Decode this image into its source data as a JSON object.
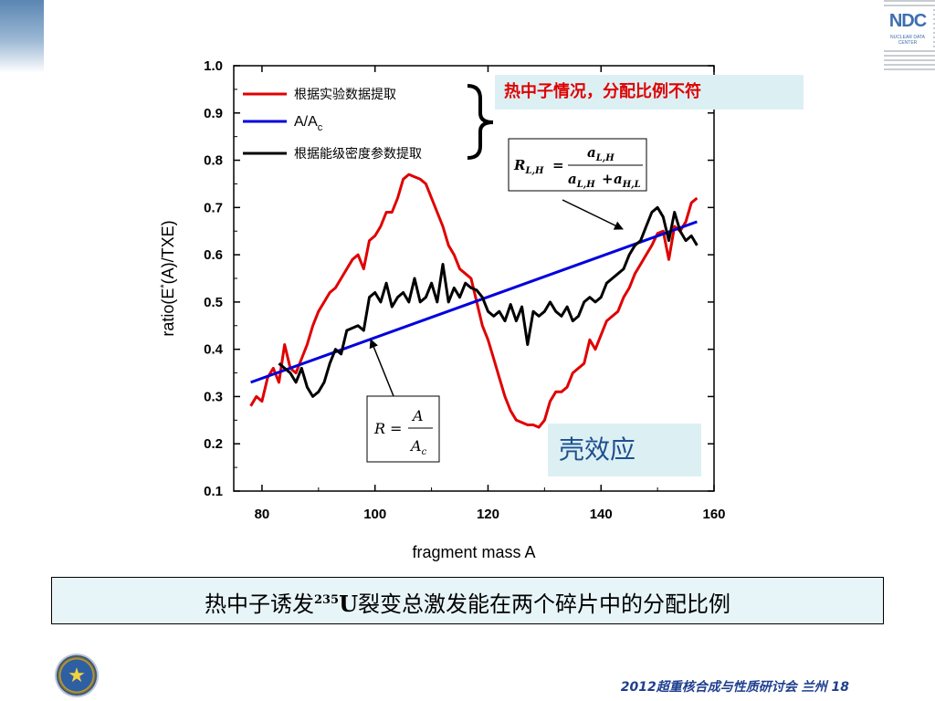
{
  "chart_data": {
    "type": "line",
    "xlabel": "fragment mass A",
    "ylabel_parts": [
      "ratio(E",
      "*",
      "(A)/TXE)"
    ],
    "xlim": [
      75,
      160
    ],
    "ylim": [
      0.1,
      1.0
    ],
    "x_ticks": [
      "80",
      "100",
      "120",
      "140",
      "160"
    ],
    "x_tick_values": [
      80,
      100,
      120,
      140,
      160
    ],
    "y_ticks": [
      "0.1",
      "0.2",
      "0.3",
      "0.4",
      "0.5",
      "0.6",
      "0.7",
      "0.8",
      "0.9",
      "1.0"
    ],
    "y_tick_values": [
      0.1,
      0.2,
      0.3,
      0.4,
      0.5,
      0.6,
      0.7,
      0.8,
      0.9,
      1.0
    ],
    "legend_position": "top-left",
    "legend": [
      {
        "label": "根据实验数据提取",
        "color": "#e00000"
      },
      {
        "label": "A/A",
        "sub": "c",
        "color": "#0000dd"
      },
      {
        "label": "根据能级密度参数提取",
        "color": "#000000"
      }
    ],
    "series": [
      {
        "color": "#e00000",
        "x": [
          78,
          79,
          80,
          81,
          82,
          83,
          84,
          85,
          86,
          87,
          88,
          89,
          90,
          91,
          92,
          93,
          94,
          95,
          96,
          97,
          98,
          99,
          100,
          101,
          102,
          103,
          104,
          105,
          106,
          107,
          108,
          109,
          110,
          111,
          112,
          113,
          114,
          115,
          116,
          117,
          118,
          119,
          120,
          121,
          122,
          123,
          124,
          125,
          126,
          127,
          128,
          129,
          130,
          131,
          132,
          133,
          134,
          135,
          136,
          137,
          138,
          139,
          140,
          141,
          142,
          143,
          144,
          145,
          146,
          147,
          148,
          149,
          150,
          151,
          152,
          153,
          154,
          155,
          156,
          157
        ],
        "y": [
          0.28,
          0.3,
          0.29,
          0.34,
          0.36,
          0.33,
          0.41,
          0.36,
          0.35,
          0.38,
          0.41,
          0.45,
          0.48,
          0.5,
          0.52,
          0.53,
          0.55,
          0.57,
          0.59,
          0.6,
          0.57,
          0.63,
          0.64,
          0.66,
          0.69,
          0.69,
          0.72,
          0.76,
          0.77,
          0.765,
          0.76,
          0.75,
          0.72,
          0.69,
          0.66,
          0.62,
          0.6,
          0.57,
          0.56,
          0.55,
          0.5,
          0.45,
          0.42,
          0.38,
          0.34,
          0.3,
          0.27,
          0.25,
          0.245,
          0.24,
          0.24,
          0.235,
          0.25,
          0.29,
          0.31,
          0.31,
          0.32,
          0.35,
          0.36,
          0.37,
          0.42,
          0.4,
          0.43,
          0.46,
          0.47,
          0.48,
          0.51,
          0.53,
          0.56,
          0.58,
          0.6,
          0.62,
          0.645,
          0.65,
          0.59,
          0.66,
          0.65,
          0.67,
          0.71,
          0.72
        ]
      },
      {
        "color": "#0000dd",
        "x": [
          78,
          157
        ],
        "y": [
          0.33,
          0.67
        ]
      },
      {
        "color": "#000000",
        "x": [
          83,
          84,
          85,
          86,
          87,
          88,
          89,
          90,
          91,
          92,
          93,
          94,
          95,
          96,
          97,
          98,
          99,
          100,
          101,
          102,
          103,
          104,
          105,
          106,
          107,
          108,
          109,
          110,
          111,
          112,
          113,
          114,
          115,
          116,
          117,
          118,
          119,
          120,
          121,
          122,
          123,
          124,
          125,
          126,
          127,
          128,
          129,
          130,
          131,
          132,
          133,
          134,
          135,
          136,
          137,
          138,
          139,
          140,
          141,
          142,
          143,
          144,
          145,
          146,
          147,
          148,
          149,
          150,
          151,
          152,
          153,
          154,
          155,
          156,
          157
        ],
        "y": [
          0.37,
          0.36,
          0.35,
          0.33,
          0.36,
          0.32,
          0.3,
          0.31,
          0.33,
          0.37,
          0.4,
          0.39,
          0.44,
          0.445,
          0.45,
          0.44,
          0.51,
          0.52,
          0.5,
          0.54,
          0.49,
          0.51,
          0.52,
          0.5,
          0.55,
          0.5,
          0.51,
          0.54,
          0.5,
          0.58,
          0.5,
          0.53,
          0.51,
          0.54,
          0.53,
          0.525,
          0.51,
          0.48,
          0.47,
          0.48,
          0.46,
          0.495,
          0.46,
          0.49,
          0.41,
          0.48,
          0.47,
          0.48,
          0.5,
          0.48,
          0.47,
          0.49,
          0.46,
          0.47,
          0.5,
          0.51,
          0.5,
          0.51,
          0.54,
          0.55,
          0.56,
          0.57,
          0.6,
          0.62,
          0.63,
          0.66,
          0.69,
          0.7,
          0.68,
          0.63,
          0.69,
          0.65,
          0.63,
          0.64,
          0.62
        ]
      }
    ],
    "annotations": {
      "formula_upper": {
        "lhs": "R",
        "lhs_sub": "L,H",
        "num": "a",
        "num_sub": "L,H",
        "den1": "a",
        "den1_sub": "L,H",
        "den2": "a",
        "den2_sub": "H,L"
      },
      "formula_lower": {
        "lhs": "R",
        "num": "A",
        "den": "A",
        "den_sub": "c"
      }
    }
  },
  "callout_red": "热中子情况，分配比例不符",
  "callout_shell": "壳效应",
  "caption": {
    "before": "热中子诱发",
    "sup": "235",
    "element": "U",
    "after": "裂变总激发能在两个碎片中的分配比例"
  },
  "header_logo": {
    "text": "NDC",
    "sub": "NUCLEAR DATA CENTER"
  },
  "footer": {
    "text": "2012超重核合成与性质研讨会 兰州",
    "page": "18"
  }
}
